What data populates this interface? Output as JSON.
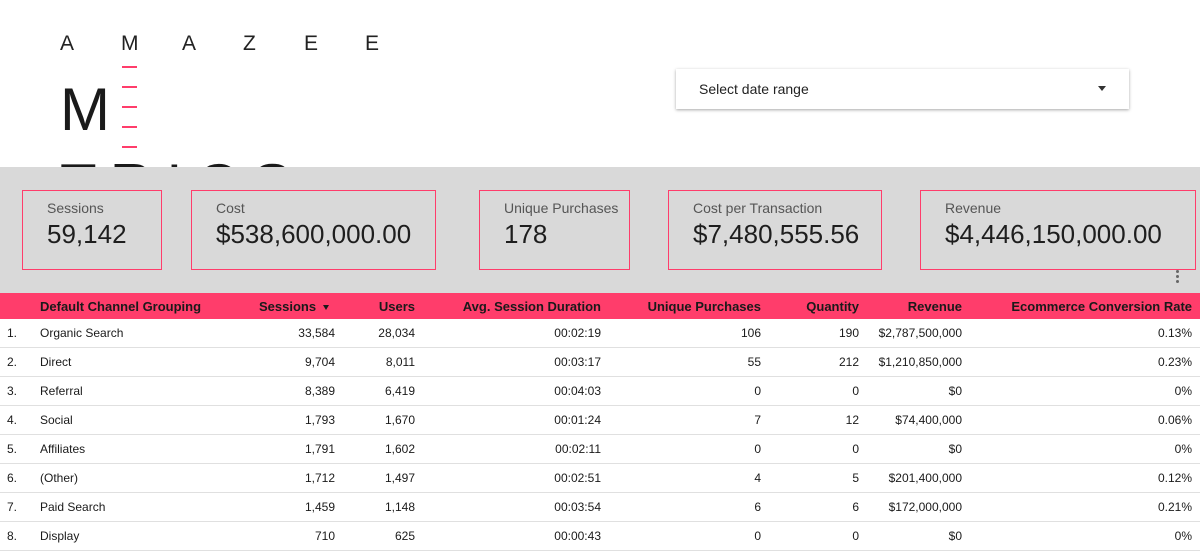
{
  "logo": {
    "top_text": [
      "A",
      "M",
      "A",
      "Z",
      "E",
      "E"
    ],
    "main_prefix": "M",
    "main_suffix": "TRICS"
  },
  "date_range": {
    "label": "Select date range",
    "icon": "caret-down-icon"
  },
  "kpis": [
    {
      "label": "Sessions",
      "value": "59,142"
    },
    {
      "label": "Cost",
      "value": "$538,600,000.00"
    },
    {
      "label": "Unique Purchases",
      "value": "178"
    },
    {
      "label": "Cost per Transaction",
      "value": "$7,480,555.56"
    },
    {
      "label": "Revenue",
      "value": "$4,446,150,000.00"
    }
  ],
  "table": {
    "headers": [
      "Default Channel Grouping",
      "Sessions",
      "Users",
      "Avg. Session Duration",
      "Unique Purchases",
      "Quantity",
      "Revenue",
      "Ecommerce Conversion Rate"
    ],
    "sort_column": "Sessions",
    "rows": [
      {
        "idx": "1.",
        "channel": "Organic Search",
        "sessions": "33,584",
        "users": "28,034",
        "duration": "00:02:19",
        "purchases": "106",
        "quantity": "190",
        "revenue": "$2,787,500,000",
        "conv": "0.13%"
      },
      {
        "idx": "2.",
        "channel": "Direct",
        "sessions": "9,704",
        "users": "8,011",
        "duration": "00:03:17",
        "purchases": "55",
        "quantity": "212",
        "revenue": "$1,210,850,000",
        "conv": "0.23%"
      },
      {
        "idx": "3.",
        "channel": "Referral",
        "sessions": "8,389",
        "users": "6,419",
        "duration": "00:04:03",
        "purchases": "0",
        "quantity": "0",
        "revenue": "$0",
        "conv": "0%"
      },
      {
        "idx": "4.",
        "channel": "Social",
        "sessions": "1,793",
        "users": "1,670",
        "duration": "00:01:24",
        "purchases": "7",
        "quantity": "12",
        "revenue": "$74,400,000",
        "conv": "0.06%"
      },
      {
        "idx": "5.",
        "channel": "Affiliates",
        "sessions": "1,791",
        "users": "1,602",
        "duration": "00:02:11",
        "purchases": "0",
        "quantity": "0",
        "revenue": "$0",
        "conv": "0%"
      },
      {
        "idx": "6.",
        "channel": "(Other)",
        "sessions": "1,712",
        "users": "1,497",
        "duration": "00:02:51",
        "purchases": "4",
        "quantity": "5",
        "revenue": "$201,400,000",
        "conv": "0.12%"
      },
      {
        "idx": "7.",
        "channel": "Paid Search",
        "sessions": "1,459",
        "users": "1,148",
        "duration": "00:03:54",
        "purchases": "6",
        "quantity": "6",
        "revenue": "$172,000,000",
        "conv": "0.21%"
      },
      {
        "idx": "8.",
        "channel": "Display",
        "sessions": "710",
        "users": "625",
        "duration": "00:00:43",
        "purchases": "0",
        "quantity": "0",
        "revenue": "$0",
        "conv": "0%"
      }
    ]
  },
  "colors": {
    "accent": "#ff3d6b",
    "band": "#d9d9d9"
  }
}
